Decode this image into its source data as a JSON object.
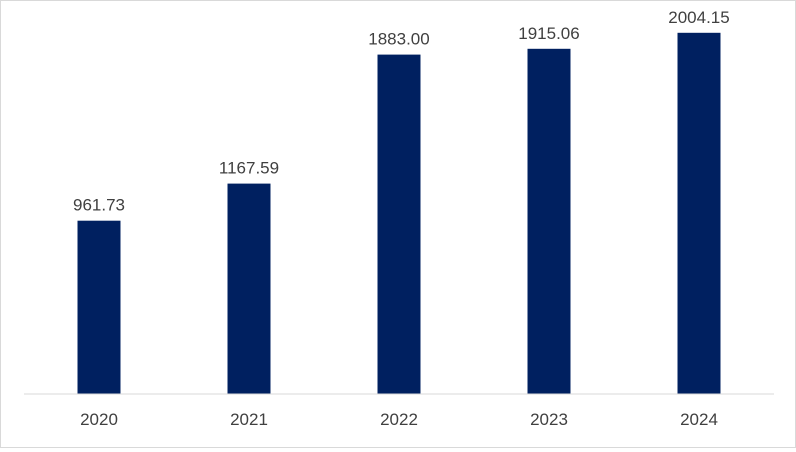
{
  "chart_data": {
    "type": "bar",
    "categories": [
      "2020",
      "2021",
      "2022",
      "2023",
      "2024"
    ],
    "values": [
      961.73,
      1167.59,
      1883.0,
      1915.06,
      2004.15
    ],
    "value_labels": [
      "961.73",
      "1167.59",
      "1883.00",
      "1915.06",
      "2004.15"
    ],
    "title": "",
    "xlabel": "",
    "ylabel": "",
    "ylim": [
      0,
      2125
    ],
    "grid": false,
    "legend": "none",
    "bar_color": "#002060",
    "axis_color": "#d9d9d9",
    "label_color": "#404040"
  }
}
